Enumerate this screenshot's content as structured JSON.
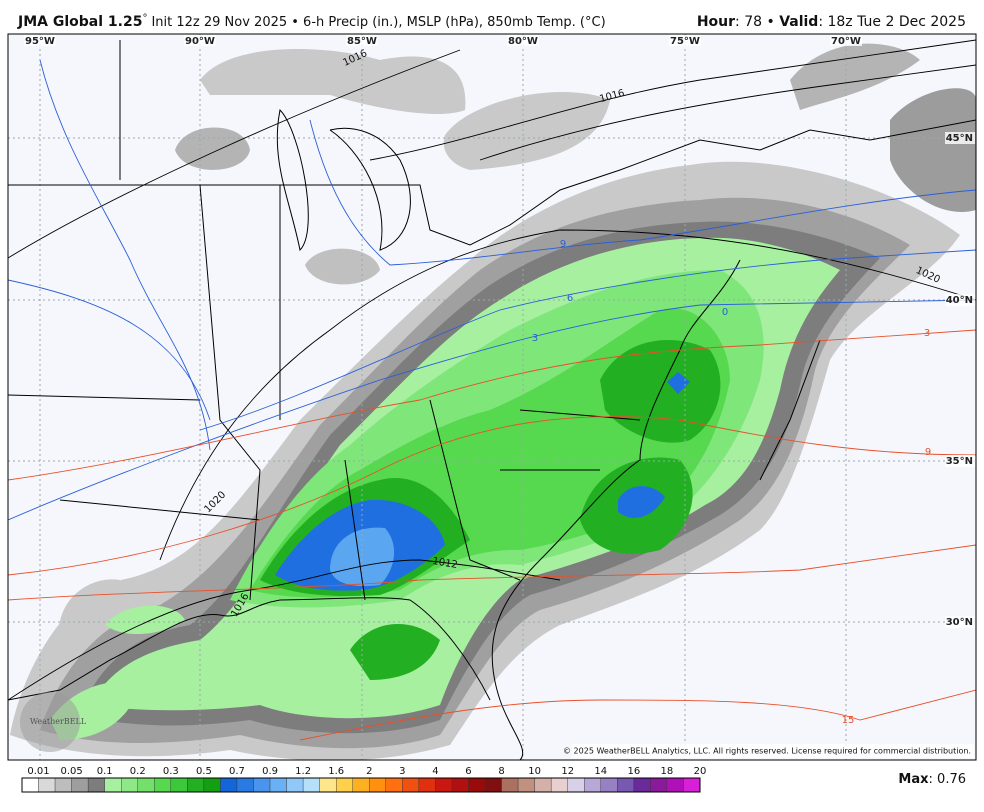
{
  "header": {
    "model": "JMA Global 1.25",
    "degree": "°",
    "run_info": "Init 12z 29 Nov 2025 • 6-h Precip (in.), MSLP (hPa), 850mb Temp. (°C)",
    "hour_label": "Hour",
    "hour": ": 78 • ",
    "valid_label": "Valid",
    "valid": ": 18z Tue 2 Dec 2025"
  },
  "map": {
    "longitudes": [
      "95°W",
      "90°W",
      "85°W",
      "80°W",
      "75°W",
      "70°W"
    ],
    "latitudes": [
      "45°N",
      "40°N",
      "35°N",
      "30°N"
    ],
    "pressure_labels": [
      "1016",
      "1016",
      "1020",
      "1020",
      "1012",
      "1016"
    ],
    "temperature_labels": [
      "9",
      "6",
      "3",
      "0",
      "3",
      "9",
      "15"
    ],
    "logo": "WeatherBELL",
    "copyright": "© 2025 WeatherBELL Analytics, LLC. All rights reserved. License required for commercial distribution."
  },
  "colorbar": {
    "labels": [
      "0.01",
      "0.05",
      "0.1",
      "0.2",
      "0.3",
      "0.5",
      "0.7",
      "0.9",
      "1.2",
      "1.6",
      "2",
      "3",
      "4",
      "6",
      "8",
      "10",
      "12",
      "14",
      "16",
      "18",
      "20"
    ]
  },
  "footer": {
    "max_label": "Max",
    "max_value": ": 0.76"
  }
}
